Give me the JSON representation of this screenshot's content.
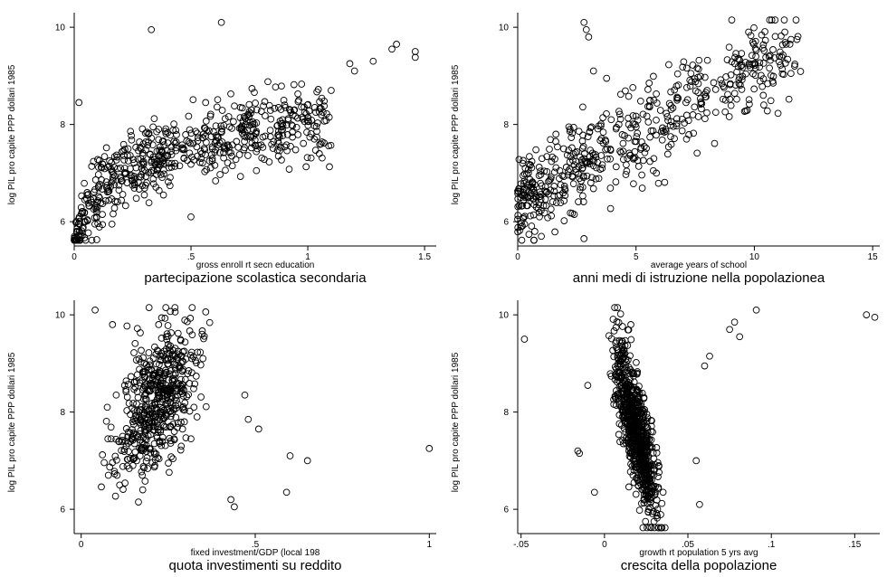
{
  "figure": {
    "background": "#ffffff",
    "marker": "hollow-circle",
    "marker_color": "#000000"
  },
  "chart_data": [
    {
      "type": "scatter",
      "title": "",
      "caption": "partecipazione scolastica secondaria",
      "xlabel": "gross enroll rt secn education",
      "ylabel": "log PIL pro capite PPP dollari 1985",
      "xlim": [
        0,
        1.55
      ],
      "ylim": [
        5.5,
        10.3
      ],
      "xticks": [
        0,
        0.5,
        1,
        1.5
      ],
      "xtick_labels": [
        "0",
        ".5",
        "1",
        "1.5"
      ],
      "yticks": [
        6,
        8,
        10
      ],
      "ytick_labels": [
        "6",
        "8",
        "10"
      ],
      "trend": {
        "model": "log",
        "x0": 0.03,
        "a": 8.0,
        "b": 0.75,
        "c": 0,
        "d": 0,
        "spread": 0.38,
        "xmin": 0.0,
        "xmax": 1.1,
        "xdist": "skew",
        "n": 620
      },
      "extra_points": [
        {
          "x": 0.02,
          "y": 8.45
        },
        {
          "x": 0.33,
          "y": 9.95
        },
        {
          "x": 0.63,
          "y": 10.1
        },
        {
          "x": 0.5,
          "y": 6.1
        },
        {
          "x": 0.78,
          "y": 7.05
        },
        {
          "x": 1.2,
          "y": 9.1
        },
        {
          "x": 1.28,
          "y": 9.3
        },
        {
          "x": 1.36,
          "y": 9.55
        },
        {
          "x": 1.38,
          "y": 9.65
        },
        {
          "x": 1.46,
          "y": 9.5
        },
        {
          "x": 1.46,
          "y": 9.38
        },
        {
          "x": 1.1,
          "y": 8.7
        },
        {
          "x": 1.18,
          "y": 9.25
        }
      ]
    },
    {
      "type": "scatter",
      "title": "",
      "caption": "anni medi di istruzione nella popolazionea",
      "xlabel": "average years of school",
      "ylabel": "log PIL pro capite PPP dollari 1985",
      "xlim": [
        0,
        15.3
      ],
      "ylim": [
        5.5,
        10.3
      ],
      "xticks": [
        0,
        5,
        10,
        15
      ],
      "xtick_labels": [
        "0",
        "5",
        "10",
        "15"
      ],
      "yticks": [
        6,
        8,
        10
      ],
      "ytick_labels": [
        "6",
        "8",
        "10"
      ],
      "trend": {
        "model": "linear",
        "x0": 0,
        "a": 6.45,
        "b": 0.27,
        "c": 0,
        "d": 0,
        "spread": 0.45,
        "xmin": 0.0,
        "xmax": 12.0,
        "xdist": "skew",
        "n": 560
      },
      "extra_points": [
        {
          "x": 2.8,
          "y": 10.1
        },
        {
          "x": 2.9,
          "y": 9.95
        },
        {
          "x": 3.0,
          "y": 9.8
        },
        {
          "x": 2.8,
          "y": 5.65
        },
        {
          "x": 11.7,
          "y": 9.2
        },
        {
          "x": 11.8,
          "y": 9.75
        },
        {
          "x": 11.5,
          "y": 9.65
        },
        {
          "x": 10.4,
          "y": 8.4
        },
        {
          "x": 1.0,
          "y": 5.7
        },
        {
          "x": 3.2,
          "y": 9.1
        }
      ]
    },
    {
      "type": "scatter",
      "title": "",
      "caption": "quota investimenti su reddito",
      "xlabel": "fixed investment/GDP (local 198",
      "ylabel": "log PIL pro capite PPP dollari 1985",
      "xlim": [
        -0.02,
        1.02
      ],
      "ylim": [
        5.5,
        10.3
      ],
      "xticks": [
        0,
        0.5,
        1
      ],
      "xtick_labels": [
        "0",
        ".5",
        "1"
      ],
      "yticks": [
        6,
        8,
        10
      ],
      "ytick_labels": [
        "6",
        "8",
        "10"
      ],
      "trend": {
        "model": "linear",
        "x0": 0,
        "a": 6.7,
        "b": 7.2,
        "c": 0,
        "d": 0,
        "spread": 0.7,
        "xmin": 0.03,
        "xmax": 0.4,
        "xdist": "center",
        "n": 540
      },
      "extra_points": [
        {
          "x": 0.04,
          "y": 10.1
        },
        {
          "x": 0.09,
          "y": 9.8
        },
        {
          "x": 1.0,
          "y": 7.25
        },
        {
          "x": 0.6,
          "y": 7.1
        },
        {
          "x": 0.65,
          "y": 7.0
        },
        {
          "x": 0.59,
          "y": 6.35
        },
        {
          "x": 0.44,
          "y": 6.05
        },
        {
          "x": 0.43,
          "y": 6.2
        },
        {
          "x": 0.51,
          "y": 7.65
        },
        {
          "x": 0.48,
          "y": 7.85
        },
        {
          "x": 0.47,
          "y": 8.35
        }
      ]
    },
    {
      "type": "scatter",
      "title": "",
      "caption": "crescita della popolazione",
      "xlabel": "growth rt population 5 yrs avg",
      "ylabel": "log PIL pro capite PPP dollari 1985",
      "xlim": [
        -0.052,
        0.165
      ],
      "ylim": [
        5.5,
        10.3
      ],
      "xticks": [
        -0.05,
        0,
        0.05,
        0.1,
        0.15
      ],
      "xtick_labels": [
        "-.05",
        "0",
        ".05",
        ".1",
        ".15"
      ],
      "yticks": [
        6,
        8,
        10
      ],
      "ytick_labels": [
        "6",
        "8",
        "10"
      ],
      "trend": {
        "model": "linear",
        "x0": 0,
        "a": 9.8,
        "b": -115,
        "c": 0,
        "d": 0,
        "spread": 0.55,
        "xmin": 0.0,
        "xmax": 0.038,
        "xdist": "center",
        "n": 820
      },
      "extra_points": [
        {
          "x": -0.048,
          "y": 9.5
        },
        {
          "x": 0.091,
          "y": 10.1
        },
        {
          "x": 0.157,
          "y": 10.0
        },
        {
          "x": 0.162,
          "y": 9.95
        },
        {
          "x": 0.075,
          "y": 9.7
        },
        {
          "x": 0.078,
          "y": 9.85
        },
        {
          "x": 0.081,
          "y": 9.55
        },
        {
          "x": -0.016,
          "y": 7.2
        },
        {
          "x": -0.015,
          "y": 7.15
        },
        {
          "x": -0.006,
          "y": 6.35
        },
        {
          "x": -0.01,
          "y": 8.55
        },
        {
          "x": 0.063,
          "y": 9.15
        },
        {
          "x": 0.06,
          "y": 8.95
        },
        {
          "x": 0.057,
          "y": 6.1
        },
        {
          "x": 0.055,
          "y": 7.0
        }
      ]
    }
  ]
}
